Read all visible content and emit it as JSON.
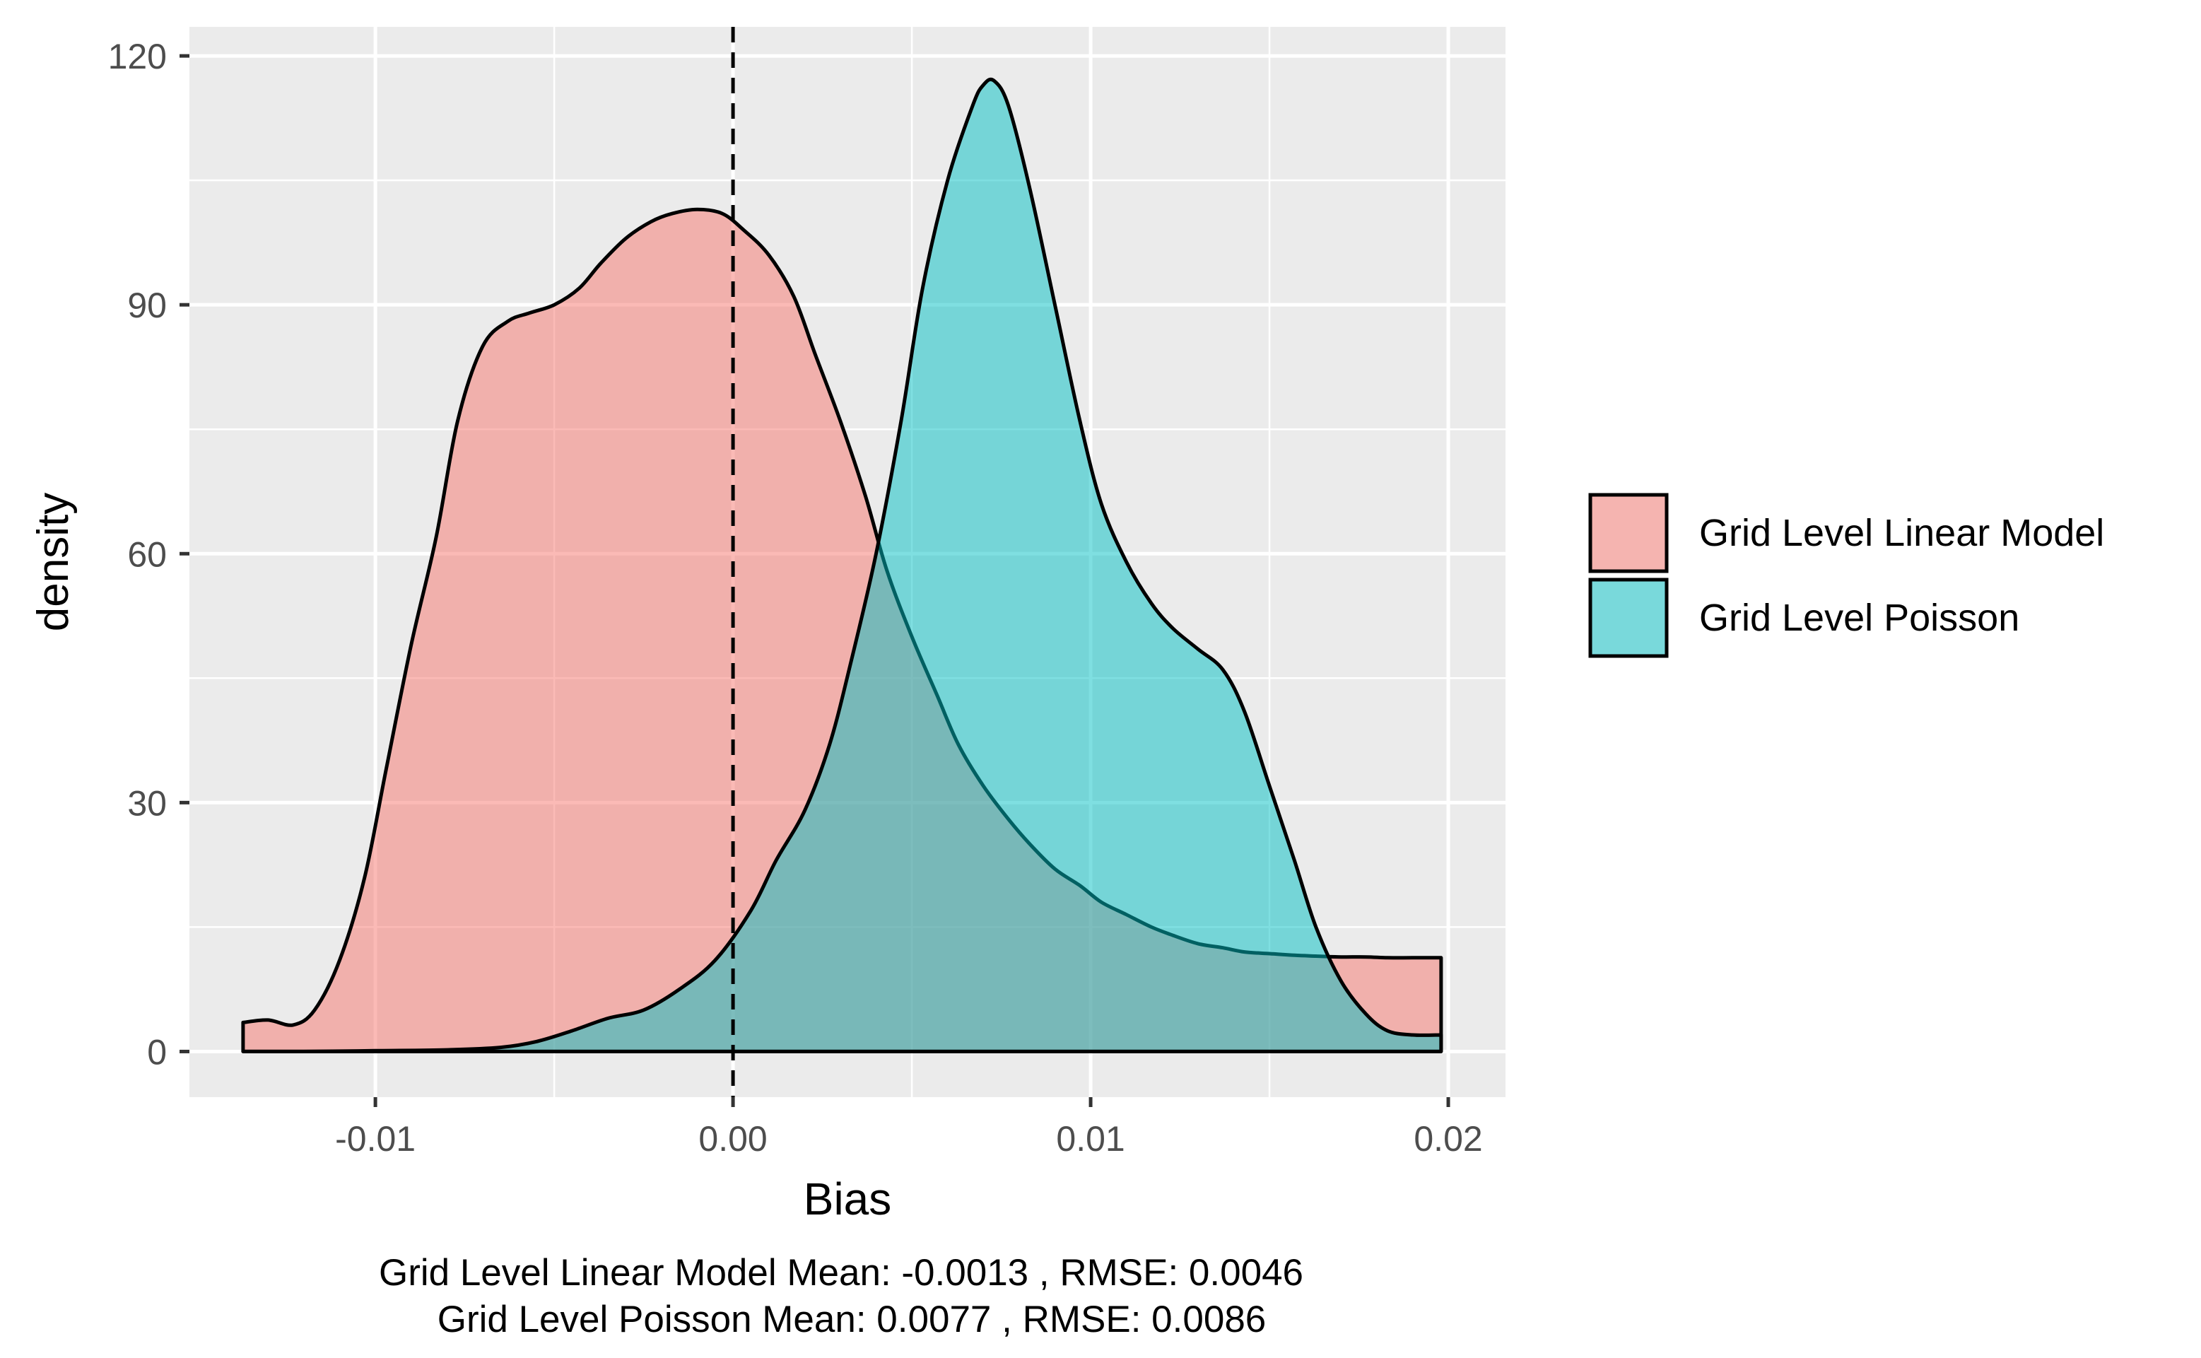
{
  "chart_data": {
    "type": "area",
    "subtype": "density",
    "title": "",
    "xlabel": "Bias",
    "ylabel": "density",
    "xlim": [
      -0.0152,
      0.0216
    ],
    "ylim": [
      -5.5,
      123.5
    ],
    "x_ticks": [
      -0.01,
      0.0,
      0.01,
      0.02
    ],
    "x_tick_labels": [
      "-0.01",
      "0.00",
      "0.01",
      "0.02"
    ],
    "x_minor_ticks": [
      -0.005,
      0.005,
      0.015
    ],
    "y_ticks": [
      0,
      30,
      60,
      90,
      120
    ],
    "y_tick_labels": [
      "0",
      "30",
      "60",
      "90",
      "120"
    ],
    "y_minor_ticks": [
      15,
      45,
      75,
      105
    ],
    "grid": true,
    "panel_background": "#EBEBEB",
    "grid_color": "#FFFFFF",
    "legend_position": "right",
    "reference_line": {
      "x": 0.0,
      "style": "dashed",
      "color": "#000000"
    },
    "series": [
      {
        "name": "Grid Level Linear Model",
        "color": "#F8766D",
        "fill_opacity": 0.5,
        "points": [
          [
            -0.0137,
            3.5
          ],
          [
            -0.013,
            3.8
          ],
          [
            -0.0123,
            3.2
          ],
          [
            -0.0117,
            5.0
          ],
          [
            -0.011,
            11
          ],
          [
            -0.0103,
            21
          ],
          [
            -0.0097,
            34
          ],
          [
            -0.009,
            49
          ],
          [
            -0.0083,
            62
          ],
          [
            -0.0077,
            76
          ],
          [
            -0.007,
            85
          ],
          [
            -0.0063,
            88
          ],
          [
            -0.0057,
            89
          ],
          [
            -0.005,
            90
          ],
          [
            -0.0043,
            92
          ],
          [
            -0.0037,
            95
          ],
          [
            -0.003,
            98
          ],
          [
            -0.0023,
            100
          ],
          [
            -0.0017,
            101
          ],
          [
            -0.001,
            101.5
          ],
          [
            -0.0003,
            101
          ],
          [
            0.0003,
            99
          ],
          [
            0.001,
            96
          ],
          [
            0.0017,
            91
          ],
          [
            0.0023,
            84
          ],
          [
            0.003,
            76
          ],
          [
            0.0037,
            67
          ],
          [
            0.0043,
            58
          ],
          [
            0.005,
            50
          ],
          [
            0.0057,
            43
          ],
          [
            0.0063,
            37
          ],
          [
            0.007,
            32
          ],
          [
            0.0077,
            28
          ],
          [
            0.0083,
            25
          ],
          [
            0.009,
            22
          ],
          [
            0.0097,
            20
          ],
          [
            0.0103,
            18
          ],
          [
            0.011,
            16.5
          ],
          [
            0.0117,
            15
          ],
          [
            0.0123,
            14
          ],
          [
            0.013,
            13
          ],
          [
            0.0137,
            12.5
          ],
          [
            0.0143,
            12
          ],
          [
            0.015,
            11.8
          ],
          [
            0.0157,
            11.6
          ],
          [
            0.0163,
            11.5
          ],
          [
            0.017,
            11.4
          ],
          [
            0.0177,
            11.4
          ],
          [
            0.0183,
            11.3
          ],
          [
            0.019,
            11.3
          ],
          [
            0.0198,
            11.3
          ]
        ]
      },
      {
        "name": "Grid Level Poisson",
        "color": "#00BFC4",
        "fill_opacity": 0.5,
        "points": [
          [
            -0.0137,
            0
          ],
          [
            -0.012,
            0
          ],
          [
            -0.01,
            0.1
          ],
          [
            -0.008,
            0.2
          ],
          [
            -0.0065,
            0.5
          ],
          [
            -0.0055,
            1.2
          ],
          [
            -0.0045,
            2.5
          ],
          [
            -0.0035,
            4
          ],
          [
            -0.0025,
            5
          ],
          [
            -0.0015,
            7.5
          ],
          [
            -0.0005,
            11
          ],
          [
            0.0005,
            17
          ],
          [
            0.0012,
            23
          ],
          [
            0.002,
            29
          ],
          [
            0.0027,
            37
          ],
          [
            0.0033,
            47
          ],
          [
            0.004,
            60
          ],
          [
            0.0047,
            76
          ],
          [
            0.0053,
            92
          ],
          [
            0.006,
            105
          ],
          [
            0.0067,
            114
          ],
          [
            0.007,
            116.5
          ],
          [
            0.0073,
            117
          ],
          [
            0.0077,
            114
          ],
          [
            0.0083,
            104
          ],
          [
            0.009,
            90
          ],
          [
            0.0097,
            76
          ],
          [
            0.0103,
            66
          ],
          [
            0.011,
            59
          ],
          [
            0.0117,
            54
          ],
          [
            0.0123,
            51
          ],
          [
            0.013,
            48.5
          ],
          [
            0.0137,
            46
          ],
          [
            0.0143,
            41
          ],
          [
            0.015,
            32
          ],
          [
            0.0157,
            23
          ],
          [
            0.0163,
            15
          ],
          [
            0.017,
            8.5
          ],
          [
            0.0177,
            4.5
          ],
          [
            0.0183,
            2.5
          ],
          [
            0.019,
            2
          ],
          [
            0.0198,
            2
          ]
        ]
      }
    ],
    "caption_lines": [
      "Grid Level Linear Model Mean: -0.0013 , RMSE: 0.0046",
      "Grid Level Poisson Mean: 0.0077 , RMSE: 0.0086"
    ]
  }
}
